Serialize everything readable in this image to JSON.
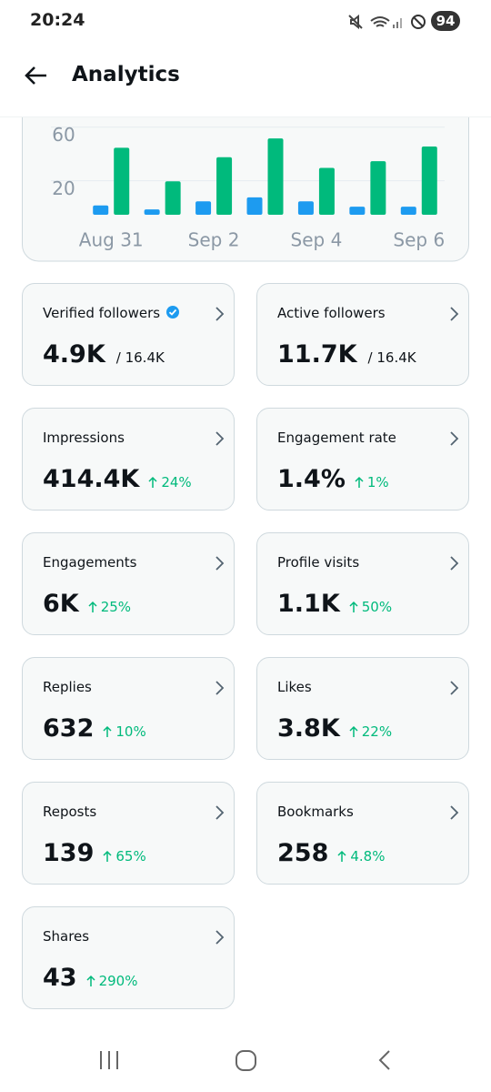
{
  "status_bar": {
    "time": "20:24",
    "battery": "94"
  },
  "header": {
    "title": "Analytics"
  },
  "chart_data": {
    "type": "bar",
    "categories": [
      "Aug 31",
      null,
      "Sep 2",
      null,
      "Sep 4",
      null,
      "Sep 6"
    ],
    "series": [
      {
        "color": "#1d9bf0",
        "values": [
          7,
          4,
          10,
          13,
          10,
          6,
          6
        ]
      },
      {
        "color": "#00ba7c",
        "values": [
          50,
          25,
          43,
          57,
          35,
          40,
          51
        ]
      }
    ],
    "ylim": [
      0,
      70
    ],
    "yticks": [
      20,
      60
    ],
    "grid": true
  },
  "cards": [
    {
      "label": "Verified followers",
      "verified": true,
      "value": "4.9K",
      "total": "/ 16.4K"
    },
    {
      "label": "Active followers",
      "value": "11.7K",
      "total": "/ 16.4K"
    },
    {
      "label": "Impressions",
      "value": "414.4K",
      "change": "24%"
    },
    {
      "label": "Engagement rate",
      "value": "1.4%",
      "change": "1%"
    },
    {
      "label": "Engagements",
      "value": "6K",
      "change": "25%"
    },
    {
      "label": "Profile visits",
      "value": "1.1K",
      "change": "50%"
    },
    {
      "label": "Replies",
      "value": "632",
      "change": "10%"
    },
    {
      "label": "Likes",
      "value": "3.8K",
      "change": "22%"
    },
    {
      "label": "Reposts",
      "value": "139",
      "change": "65%"
    },
    {
      "label": "Bookmarks",
      "value": "258",
      "change": "4.8%"
    },
    {
      "label": "Shares",
      "value": "43",
      "change": "290%"
    }
  ]
}
